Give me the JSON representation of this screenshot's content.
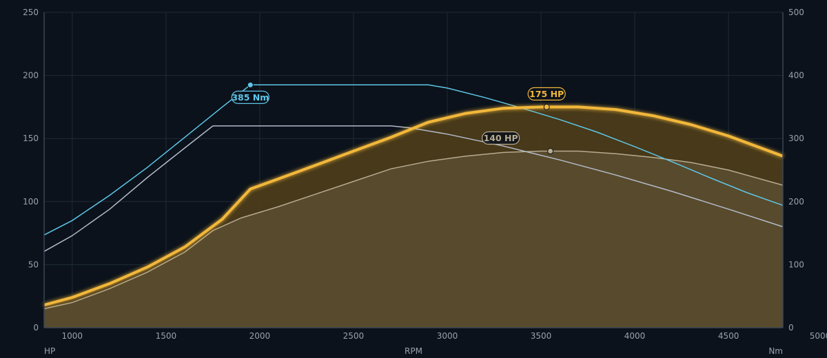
{
  "chart_data": {
    "type": "line",
    "xlabel": "RPM",
    "ylabel_left": "HP",
    "ylabel_right": "Nm",
    "xlim": [
      850,
      4790
    ],
    "x_ticks": [
      1000,
      1500,
      2000,
      2500,
      3000,
      3500,
      4000,
      4500,
      5000
    ],
    "ylim_left": [
      0,
      250
    ],
    "y_ticks_left": [
      0,
      50,
      100,
      150,
      200,
      250
    ],
    "ylim_right": [
      0,
      500
    ],
    "y_ticks_right": [
      0,
      100,
      200,
      300,
      400,
      500
    ],
    "grid": true,
    "colors": {
      "background": "#0b121b",
      "grid": "#1f2b39",
      "axis": "#3a4656",
      "power_tuned": "#f2b73a",
      "power_tuned_fill": "#4b3c19",
      "power_stock": "#b8ab92",
      "power_stock_fill": "#5a4b2d",
      "torque_tuned": "#5fc6e8",
      "torque_stock": "#b3bccb"
    },
    "series": [
      {
        "key": "power_stock",
        "axis": "left",
        "x": [
          850,
          1000,
          1200,
          1400,
          1600,
          1750,
          1900,
          2100,
          2300,
          2500,
          2700,
          2900,
          3100,
          3300,
          3500,
          3700,
          3900,
          4100,
          4300,
          4500,
          4790
        ],
        "values": [
          15,
          20,
          31,
          44,
          60,
          77,
          87,
          96,
          106,
          116,
          126,
          132,
          136,
          139,
          140,
          140,
          138,
          135,
          131,
          125,
          113
        ]
      },
      {
        "key": "power_tuned",
        "axis": "left",
        "x": [
          850,
          1000,
          1200,
          1400,
          1600,
          1800,
          1950,
          2100,
          2300,
          2500,
          2700,
          2900,
          3100,
          3300,
          3500,
          3700,
          3900,
          4100,
          4300,
          4500,
          4790
        ],
        "values": [
          18,
          24,
          35,
          48,
          64,
          86,
          110,
          118,
          129,
          140,
          151,
          163,
          170,
          174,
          175,
          175,
          173,
          168,
          161,
          152,
          136
        ]
      },
      {
        "key": "torque_stock",
        "axis": "right",
        "x": [
          850,
          1000,
          1200,
          1400,
          1600,
          1750,
          2000,
          2250,
          2500,
          2700,
          2800,
          3000,
          3300,
          3600,
          3900,
          4200,
          4500,
          4790
        ],
        "values": [
          121,
          146,
          188,
          238,
          285,
          320,
          320,
          320,
          320,
          320,
          317,
          307,
          288,
          266,
          242,
          216,
          188,
          160
        ]
      },
      {
        "key": "torque_tuned",
        "axis": "right",
        "x": [
          850,
          1000,
          1200,
          1400,
          1600,
          1800,
          1950,
          2200,
          2500,
          2900,
          3000,
          3200,
          3400,
          3600,
          3800,
          4000,
          4200,
          4400,
          4600,
          4790
        ],
        "values": [
          147,
          170,
          210,
          254,
          302,
          350,
          385,
          385,
          385,
          385,
          380,
          365,
          348,
          330,
          310,
          287,
          263,
          238,
          214,
          194
        ]
      }
    ],
    "annotations": [
      {
        "series": "torque_tuned",
        "text": "385 Nm",
        "x": 1950,
        "y": 385
      },
      {
        "series": "power_tuned",
        "text": "175 HP",
        "x": 3530,
        "y": 175
      },
      {
        "series": "power_stock",
        "text": "140 HP",
        "x": 3550,
        "y": 140
      }
    ]
  }
}
